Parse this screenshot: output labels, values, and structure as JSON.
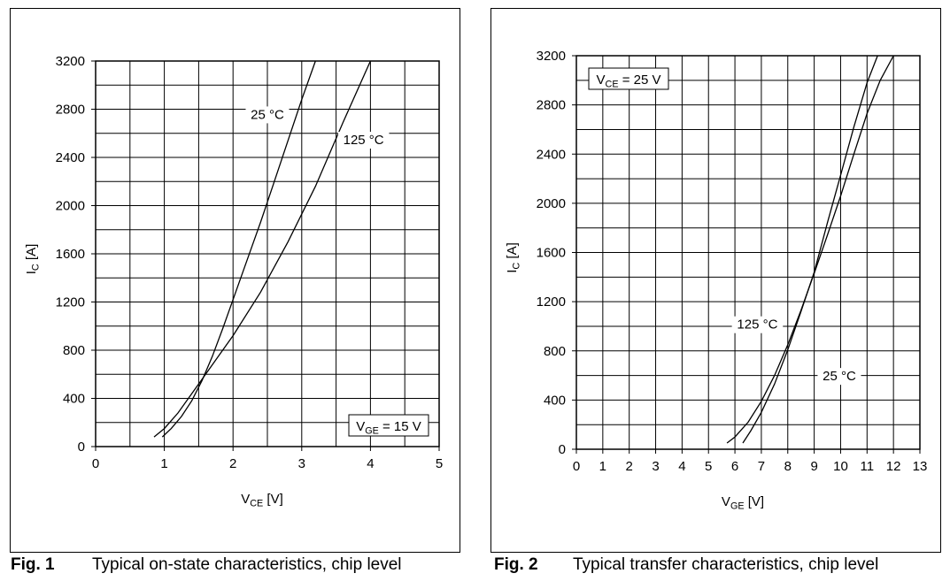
{
  "chart_data": [
    {
      "type": "line",
      "figure_label": "Fig. 1",
      "caption": "Typical on-state characteristics, chip level",
      "xlabel": {
        "main": "V",
        "sub": "CE",
        "unit": "[V]"
      },
      "ylabel": {
        "main": "I",
        "sub": "C",
        "unit": "[A]"
      },
      "xlim": [
        0,
        5
      ],
      "ylim": [
        0,
        3200
      ],
      "xticks": [
        0,
        1,
        2,
        3,
        4,
        5
      ],
      "yticks": [
        0,
        400,
        800,
        1200,
        1600,
        2000,
        2400,
        2800,
        3200
      ],
      "grid": true,
      "grid_x_step": 0.5,
      "grid_y_step": 200,
      "condition": {
        "main": "V",
        "sub": "GE",
        "rest": " = 15 V",
        "placement": "bottom-right"
      },
      "series": [
        {
          "name": "25 °C",
          "x": [
            0.97,
            1.1,
            1.25,
            1.4,
            1.55,
            1.7,
            1.85,
            2.0,
            2.2,
            2.4,
            2.6,
            2.8,
            3.0,
            3.2
          ],
          "y": [
            80,
            150,
            250,
            380,
            550,
            750,
            980,
            1220,
            1540,
            1860,
            2200,
            2540,
            2880,
            3200
          ]
        },
        {
          "name": "125 °C",
          "x": [
            0.85,
            1.0,
            1.2,
            1.4,
            1.6,
            1.8,
            2.0,
            2.4,
            2.8,
            3.2,
            3.6,
            4.0
          ],
          "y": [
            80,
            150,
            280,
            440,
            600,
            760,
            920,
            1280,
            1700,
            2160,
            2690,
            3200
          ]
        }
      ],
      "annotations": [
        {
          "text": "25 °C",
          "x": 2.5,
          "y": 2720
        },
        {
          "text": "125 °C",
          "x": 3.9,
          "y": 2510
        }
      ]
    },
    {
      "type": "line",
      "figure_label": "Fig. 2",
      "caption": "Typical transfer characteristics, chip level",
      "xlabel": {
        "main": "V",
        "sub": "GE",
        "unit": "[V]"
      },
      "ylabel": {
        "main": "I",
        "sub": "C",
        "unit": "[A]"
      },
      "xlim": [
        0,
        13
      ],
      "ylim": [
        0,
        3200
      ],
      "xticks": [
        0,
        1,
        2,
        3,
        4,
        5,
        6,
        7,
        8,
        9,
        10,
        11,
        12,
        13
      ],
      "yticks": [
        0,
        400,
        800,
        1200,
        1600,
        2000,
        2400,
        2800,
        3200
      ],
      "grid": true,
      "grid_x_step": 1,
      "grid_y_step": 200,
      "condition": {
        "main": "V",
        "sub": "CE",
        "rest": " = 25 V",
        "placement": "top-left"
      },
      "series": [
        {
          "name": "125 °C",
          "x": [
            5.7,
            6.0,
            6.5,
            7.0,
            7.5,
            8.0,
            8.5,
            9.0,
            9.5,
            10.0,
            10.5,
            11.0,
            11.5,
            12.0
          ],
          "y": [
            50,
            100,
            220,
            390,
            600,
            850,
            1130,
            1430,
            1740,
            2060,
            2400,
            2730,
            3000,
            3200
          ]
        },
        {
          "name": "25 °C",
          "x": [
            6.3,
            6.6,
            7.0,
            7.5,
            8.0,
            8.5,
            9.0,
            9.5,
            10.0,
            10.5,
            11.0,
            11.4
          ],
          "y": [
            50,
            150,
            300,
            530,
            810,
            1120,
            1440,
            1840,
            2230,
            2620,
            2980,
            3200
          ]
        }
      ],
      "annotations": [
        {
          "text": "125 °C",
          "x": 6.85,
          "y": 980
        },
        {
          "text": "25 °C",
          "x": 9.95,
          "y": 560
        }
      ]
    }
  ]
}
